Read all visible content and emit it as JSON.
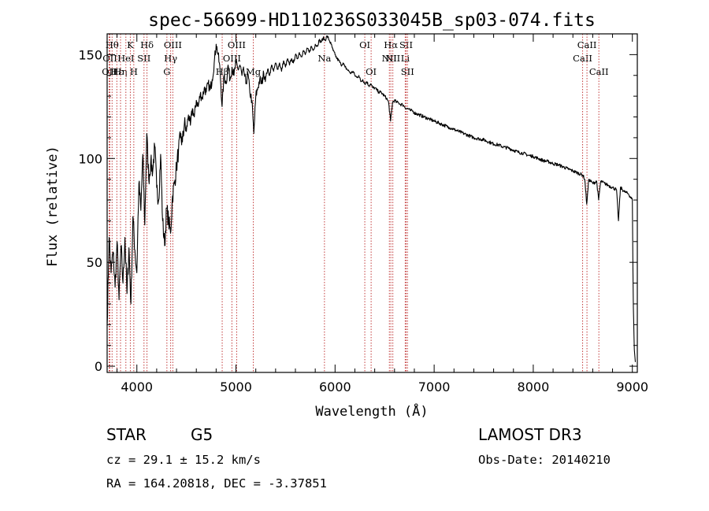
{
  "chart_data": {
    "type": "line",
    "title": "spec-56699-HD110236S033045B_sp03-074.fits",
    "xlabel": "Wavelength (Å)",
    "ylabel": "Flux (relative)",
    "xlim": [
      3700,
      9050
    ],
    "ylim": [
      -3,
      160
    ],
    "x_ticks": [
      4000,
      5000,
      6000,
      7000,
      8000,
      9000
    ],
    "y_ticks": [
      0,
      50,
      100,
      150
    ],
    "series": [
      {
        "name": "spectrum",
        "points": [
          [
            3700,
            20
          ],
          [
            3720,
            62
          ],
          [
            3740,
            45
          ],
          [
            3760,
            55
          ],
          [
            3780,
            38
          ],
          [
            3800,
            60
          ],
          [
            3820,
            32
          ],
          [
            3840,
            58
          ],
          [
            3860,
            40
          ],
          [
            3880,
            62
          ],
          [
            3900,
            35
          ],
          [
            3920,
            57
          ],
          [
            3940,
            30
          ],
          [
            3960,
            72
          ],
          [
            3980,
            56
          ],
          [
            4000,
            45
          ],
          [
            4020,
            88
          ],
          [
            4040,
            75
          ],
          [
            4060,
            102
          ],
          [
            4080,
            68
          ],
          [
            4100,
            112
          ],
          [
            4120,
            90
          ],
          [
            4140,
            98
          ],
          [
            4160,
            94
          ],
          [
            4180,
            106
          ],
          [
            4200,
            86
          ],
          [
            4220,
            80
          ],
          [
            4240,
            102
          ],
          [
            4260,
            70
          ],
          [
            4280,
            58
          ],
          [
            4300,
            76
          ],
          [
            4320,
            70
          ],
          [
            4340,
            64
          ],
          [
            4360,
            82
          ],
          [
            4380,
            88
          ],
          [
            4400,
            96
          ],
          [
            4420,
            104
          ],
          [
            4440,
            110
          ],
          [
            4460,
            108
          ],
          [
            4480,
            117
          ],
          [
            4500,
            113
          ],
          [
            4520,
            121
          ],
          [
            4540,
            116
          ],
          [
            4560,
            124
          ],
          [
            4580,
            120
          ],
          [
            4600,
            128
          ],
          [
            4620,
            125
          ],
          [
            4640,
            131
          ],
          [
            4660,
            129
          ],
          [
            4680,
            134
          ],
          [
            4700,
            132
          ],
          [
            4720,
            136
          ],
          [
            4740,
            133
          ],
          [
            4760,
            138
          ],
          [
            4780,
            146
          ],
          [
            4800,
            155
          ],
          [
            4820,
            150
          ],
          [
            4840,
            142
          ],
          [
            4860,
            125
          ],
          [
            4880,
            140
          ],
          [
            4900,
            136
          ],
          [
            4920,
            145
          ],
          [
            4940,
            138
          ],
          [
            4960,
            144
          ],
          [
            4980,
            140
          ],
          [
            5000,
            146
          ],
          [
            5020,
            143
          ],
          [
            5040,
            145
          ],
          [
            5060,
            140
          ],
          [
            5080,
            142
          ],
          [
            5100,
            136
          ],
          [
            5120,
            141
          ],
          [
            5140,
            132
          ],
          [
            5160,
            128
          ],
          [
            5180,
            112
          ],
          [
            5200,
            130
          ],
          [
            5220,
            134
          ],
          [
            5240,
            138
          ],
          [
            5260,
            136
          ],
          [
            5280,
            141
          ],
          [
            5300,
            139
          ],
          [
            5320,
            143
          ],
          [
            5340,
            140
          ],
          [
            5360,
            145
          ],
          [
            5380,
            142
          ],
          [
            5400,
            146
          ],
          [
            5420,
            143
          ],
          [
            5440,
            146
          ],
          [
            5460,
            142
          ],
          [
            5480,
            147
          ],
          [
            5500,
            144
          ],
          [
            5520,
            148
          ],
          [
            5540,
            145
          ],
          [
            5560,
            148
          ],
          [
            5580,
            146
          ],
          [
            5600,
            150
          ],
          [
            5620,
            148
          ],
          [
            5640,
            151
          ],
          [
            5660,
            149
          ],
          [
            5680,
            152
          ],
          [
            5700,
            150
          ],
          [
            5720,
            153
          ],
          [
            5740,
            151
          ],
          [
            5760,
            154
          ],
          [
            5780,
            152
          ],
          [
            5800,
            155
          ],
          [
            5820,
            154
          ],
          [
            5840,
            157
          ],
          [
            5860,
            156
          ],
          [
            5880,
            158
          ],
          [
            5900,
            157
          ],
          [
            5920,
            159
          ],
          [
            5940,
            157
          ],
          [
            5960,
            155
          ],
          [
            5980,
            152
          ],
          [
            6000,
            150
          ],
          [
            6020,
            148
          ],
          [
            6040,
            147
          ],
          [
            6060,
            145
          ],
          [
            6080,
            146
          ],
          [
            6100,
            144
          ],
          [
            6120,
            143
          ],
          [
            6140,
            142
          ],
          [
            6160,
            141
          ],
          [
            6180,
            142
          ],
          [
            6200,
            140
          ],
          [
            6220,
            139
          ],
          [
            6240,
            140
          ],
          [
            6260,
            137
          ],
          [
            6280,
            138
          ],
          [
            6300,
            136
          ],
          [
            6320,
            137
          ],
          [
            6340,
            135
          ],
          [
            6360,
            136
          ],
          [
            6380,
            134
          ],
          [
            6400,
            134
          ],
          [
            6420,
            133
          ],
          [
            6440,
            132
          ],
          [
            6460,
            132
          ],
          [
            6480,
            131
          ],
          [
            6500,
            130
          ],
          [
            6520,
            129
          ],
          [
            6540,
            127
          ],
          [
            6560,
            118
          ],
          [
            6580,
            127
          ],
          [
            6600,
            128
          ],
          [
            6620,
            127
          ],
          [
            6640,
            127
          ],
          [
            6660,
            126
          ],
          [
            6680,
            126
          ],
          [
            6700,
            125
          ],
          [
            6720,
            124
          ],
          [
            6740,
            124
          ],
          [
            6760,
            123
          ],
          [
            6780,
            123
          ],
          [
            6800,
            122
          ],
          [
            6850,
            121
          ],
          [
            6900,
            120
          ],
          [
            6950,
            119
          ],
          [
            7000,
            118
          ],
          [
            7050,
            117
          ],
          [
            7100,
            116
          ],
          [
            7150,
            115
          ],
          [
            7200,
            114
          ],
          [
            7250,
            113
          ],
          [
            7300,
            112
          ],
          [
            7350,
            111
          ],
          [
            7400,
            110
          ],
          [
            7450,
            109.5
          ],
          [
            7500,
            109
          ],
          [
            7550,
            108
          ],
          [
            7600,
            107
          ],
          [
            7650,
            106.5
          ],
          [
            7700,
            105.5
          ],
          [
            7750,
            105
          ],
          [
            7800,
            104
          ],
          [
            7850,
            103
          ],
          [
            7900,
            102.5
          ],
          [
            7950,
            101.5
          ],
          [
            8000,
            101
          ],
          [
            8050,
            100
          ],
          [
            8100,
            99
          ],
          [
            8150,
            98.5
          ],
          [
            8200,
            97.5
          ],
          [
            8250,
            97
          ],
          [
            8300,
            96
          ],
          [
            8350,
            95
          ],
          [
            8400,
            94
          ],
          [
            8450,
            93
          ],
          [
            8500,
            92
          ],
          [
            8520,
            90
          ],
          [
            8540,
            78
          ],
          [
            8560,
            90
          ],
          [
            8600,
            88
          ],
          [
            8640,
            89
          ],
          [
            8660,
            80
          ],
          [
            8680,
            89
          ],
          [
            8720,
            88
          ],
          [
            8760,
            87
          ],
          [
            8800,
            86
          ],
          [
            8840,
            85
          ],
          [
            8860,
            70
          ],
          [
            8880,
            86
          ],
          [
            8920,
            84
          ],
          [
            8960,
            83
          ],
          [
            9000,
            80
          ],
          [
            9010,
            28
          ],
          [
            9020,
            8
          ],
          [
            9030,
            2
          ]
        ]
      }
    ],
    "line_markers": [
      {
        "wave": 3750,
        "label": "Hθ",
        "row": 1
      },
      {
        "wave": 3728,
        "label": "OII",
        "row": 2
      },
      {
        "wave": 3720,
        "label": "OII",
        "row": 3
      },
      {
        "wave": 3798,
        "label": "Hε",
        "row": 3
      },
      {
        "wave": 3835,
        "label": "Hη",
        "row": 3
      },
      {
        "wave": 3889,
        "label": "HeI",
        "row": 2
      },
      {
        "wave": 3934,
        "label": "K",
        "row": 1
      },
      {
        "wave": 3969,
        "label": "H",
        "row": 3
      },
      {
        "wave": 4072,
        "label": "SII",
        "row": 2
      },
      {
        "wave": 4102,
        "label": "Hδ",
        "row": 1
      },
      {
        "wave": 4303,
        "label": "G",
        "row": 3
      },
      {
        "wave": 4341,
        "label": "Hγ",
        "row": 2
      },
      {
        "wave": 4363,
        "label": "OIII",
        "row": 1
      },
      {
        "wave": 4861,
        "label": "Hβ",
        "row": 3
      },
      {
        "wave": 4959,
        "label": "OIII",
        "row": 2
      },
      {
        "wave": 5007,
        "label": "OIII",
        "row": 1
      },
      {
        "wave": 5175,
        "label": "Mg",
        "row": 3
      },
      {
        "wave": 5893,
        "label": "Na",
        "row": 2
      },
      {
        "wave": 6300,
        "label": "OI",
        "row": 1
      },
      {
        "wave": 6364,
        "label": "OI",
        "row": 3
      },
      {
        "wave": 6548,
        "label": "NII",
        "row": 2
      },
      {
        "wave": 6563,
        "label": "Hα",
        "row": 1
      },
      {
        "wave": 6583,
        "label": "NII",
        "row": 2
      },
      {
        "wave": 6708,
        "label": "Li",
        "row": 2
      },
      {
        "wave": 6717,
        "label": "SII",
        "row": 1
      },
      {
        "wave": 6731,
        "label": "SII",
        "row": 3
      },
      {
        "wave": 8498,
        "label": "CaII",
        "row": 2
      },
      {
        "wave": 8542,
        "label": "CaII",
        "row": 1
      },
      {
        "wave": 8662,
        "label": "CaII",
        "row": 3
      }
    ]
  },
  "info": {
    "object_class": "STAR",
    "subclass": "G5",
    "survey": "LAMOST DR3",
    "cz": "cz = 29.1 ± 15.2 km/s",
    "obs_date": "Obs-Date: 20140210",
    "radec": "RA = 164.20818, DEC =  -3.37851"
  }
}
